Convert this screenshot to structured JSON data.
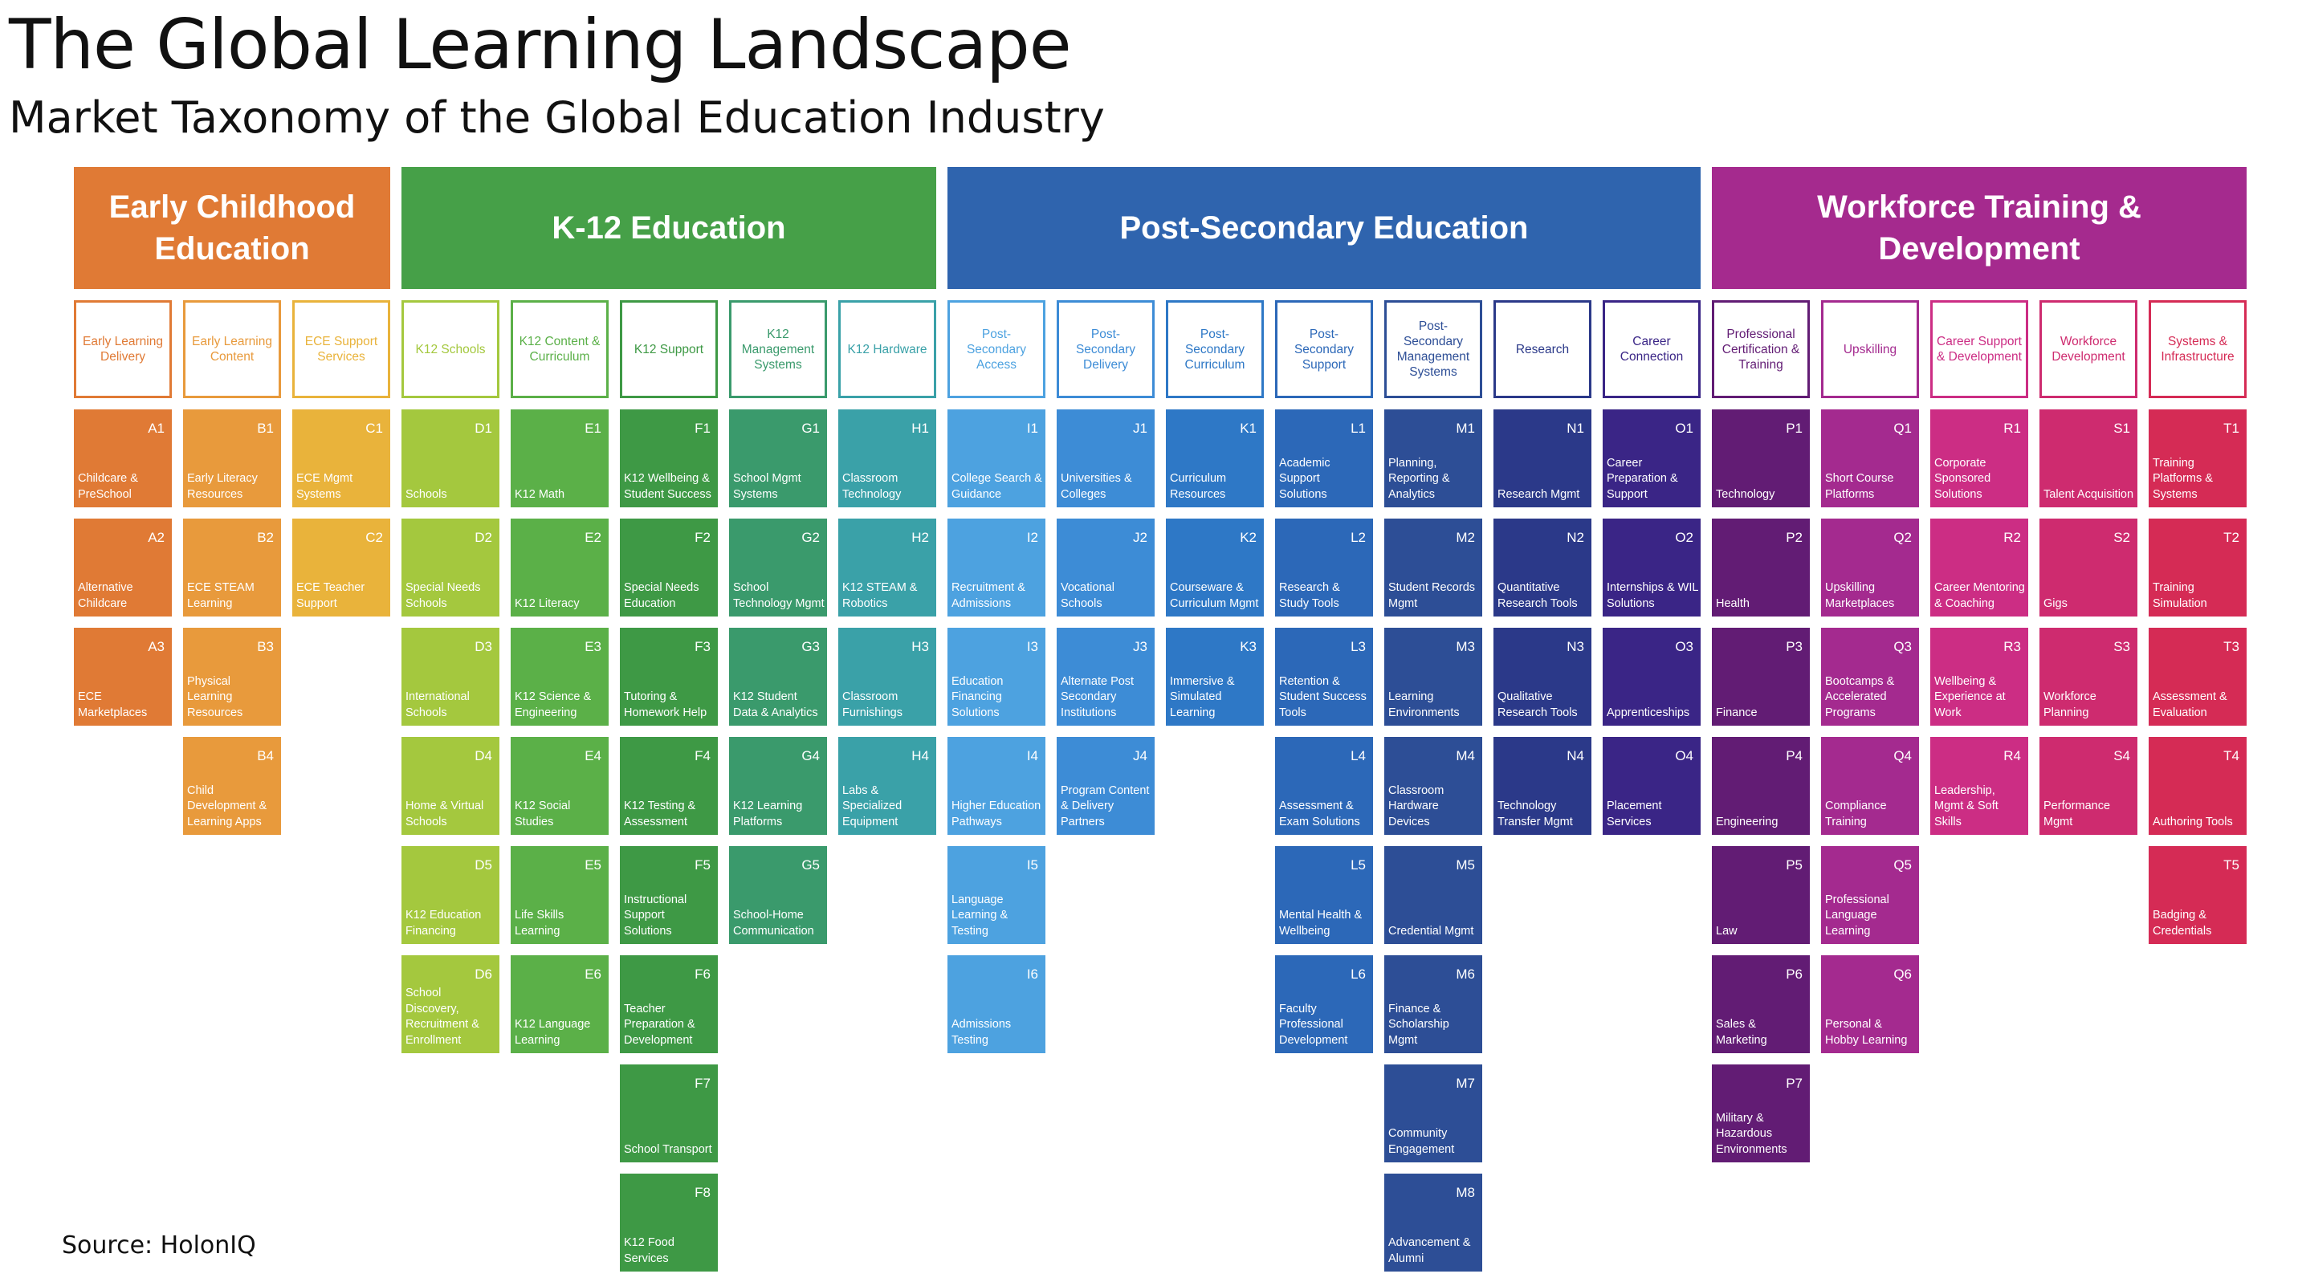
{
  "title": "The Global Learning Landscape",
  "subtitle": "Market Taxonomy of the Global Education Industry",
  "source": "Source: HolonIQ",
  "segments": [
    {
      "name": "Early Childhood Education",
      "color": "#E07A35",
      "subcategories": [
        {
          "label": "Early Learning Delivery",
          "color": "#E07A35",
          "tiles": [
            {
              "code": "A1",
              "label": "Childcare & PreSchool",
              "color": "#E07A35"
            },
            {
              "code": "A2",
              "label": "Alternative Childcare",
              "color": "#E07A35"
            },
            {
              "code": "A3",
              "label": "ECE Marketplaces",
              "color": "#E07A35"
            }
          ]
        },
        {
          "label": "Early Learning Content",
          "color": "#E89A3C",
          "tiles": [
            {
              "code": "B1",
              "label": "Early Literacy Resources",
              "color": "#E89A3C"
            },
            {
              "code": "B2",
              "label": "ECE STEAM Learning",
              "color": "#E89A3C"
            },
            {
              "code": "B3",
              "label": "Physical Learning Resources",
              "color": "#E89A3C"
            },
            {
              "code": "B4",
              "label": "Child Development & Learning Apps",
              "color": "#E89A3C"
            }
          ]
        },
        {
          "label": "ECE Support Services",
          "color": "#E9B33B",
          "tiles": [
            {
              "code": "C1",
              "label": "ECE Mgmt Systems",
              "color": "#E9B33B"
            },
            {
              "code": "C2",
              "label": "ECE Teacher Support",
              "color": "#E9B33B"
            }
          ]
        }
      ]
    },
    {
      "name": "K-12 Education",
      "color": "#46A048",
      "subcategories": [
        {
          "label": "K12 Schools",
          "color": "#A4C83E",
          "tiles": [
            {
              "code": "D1",
              "label": "Schools",
              "color": "#A4C83E"
            },
            {
              "code": "D2",
              "label": "Special Needs Schools",
              "color": "#A4C83E"
            },
            {
              "code": "D3",
              "label": "International Schools",
              "color": "#A4C83E"
            },
            {
              "code": "D4",
              "label": "Home & Virtual Schools",
              "color": "#A4C83E"
            },
            {
              "code": "D5",
              "label": "K12 Education Financing",
              "color": "#A4C83E"
            },
            {
              "code": "D6",
              "label": "School Discovery, Recruitment & Enrollment",
              "color": "#A4C83E"
            }
          ]
        },
        {
          "label": "K12 Content & Curriculum",
          "color": "#5BB048",
          "tiles": [
            {
              "code": "E1",
              "label": "K12 Math",
              "color": "#5BB048"
            },
            {
              "code": "E2",
              "label": "K12 Literacy",
              "color": "#5BB048"
            },
            {
              "code": "E3",
              "label": "K12 Science & Engineering",
              "color": "#5BB048"
            },
            {
              "code": "E4",
              "label": "K12 Social Studies",
              "color": "#5BB048"
            },
            {
              "code": "E5",
              "label": "Life Skills Learning",
              "color": "#5BB048"
            },
            {
              "code": "E6",
              "label": "K12 Language Learning",
              "color": "#5BB048"
            }
          ]
        },
        {
          "label": "K12 Support",
          "color": "#3E9945",
          "tiles": [
            {
              "code": "F1",
              "label": "K12 Wellbeing & Student Success",
              "color": "#3E9945"
            },
            {
              "code": "F2",
              "label": "Special Needs Education",
              "color": "#3E9945"
            },
            {
              "code": "F3",
              "label": "Tutoring & Homework Help",
              "color": "#3E9945"
            },
            {
              "code": "F4",
              "label": "K12 Testing & Assessment",
              "color": "#3E9945"
            },
            {
              "code": "F5",
              "label": "Instructional Support Solutions",
              "color": "#3E9945"
            },
            {
              "code": "F6",
              "label": "Teacher Preparation & Development",
              "color": "#3E9945"
            },
            {
              "code": "F7",
              "label": "School Transport",
              "color": "#3E9945"
            },
            {
              "code": "F8",
              "label": "K12 Food Services",
              "color": "#3E9945"
            }
          ]
        },
        {
          "label": "K12 Management Systems",
          "color": "#3A9A6C",
          "tiles": [
            {
              "code": "G1",
              "label": "School Mgmt Systems",
              "color": "#3A9A6C"
            },
            {
              "code": "G2",
              "label": "School Technology Mgmt",
              "color": "#3A9A6C"
            },
            {
              "code": "G3",
              "label": "K12 Student Data & Analytics",
              "color": "#3A9A6C"
            },
            {
              "code": "G4",
              "label": "K12 Learning Platforms",
              "color": "#3A9A6C"
            },
            {
              "code": "G5",
              "label": "School-Home Communication",
              "color": "#3A9A6C"
            }
          ]
        },
        {
          "label": "K12 Hardware",
          "color": "#3AA1A8",
          "tiles": [
            {
              "code": "H1",
              "label": "Classroom Technology",
              "color": "#3AA1A8"
            },
            {
              "code": "H2",
              "label": "K12 STEAM & Robotics",
              "color": "#3AA1A8"
            },
            {
              "code": "H3",
              "label": "Classroom Furnishings",
              "color": "#3AA1A8"
            },
            {
              "code": "H4",
              "label": "Labs & Specialized Equipment",
              "color": "#3AA1A8"
            }
          ]
        }
      ]
    },
    {
      "name": "Post-Secondary Education",
      "color": "#2F64AE",
      "subcategories": [
        {
          "label": "Post-Secondary Access",
          "color": "#4DA2E0",
          "tiles": [
            {
              "code": "I1",
              "label": "College Search & Guidance",
              "color": "#4DA2E0"
            },
            {
              "code": "I2",
              "label": "Recruitment & Admissions",
              "color": "#4DA2E0"
            },
            {
              "code": "I3",
              "label": "Education Financing Solutions",
              "color": "#4DA2E0"
            },
            {
              "code": "I4",
              "label": "Higher Education Pathways",
              "color": "#4DA2E0"
            },
            {
              "code": "I5",
              "label": "Language Learning & Testing",
              "color": "#4DA2E0"
            },
            {
              "code": "I6",
              "label": "Admissions Testing",
              "color": "#4DA2E0"
            }
          ]
        },
        {
          "label": "Post-Secondary Delivery",
          "color": "#3D8CD6",
          "tiles": [
            {
              "code": "J1",
              "label": "Universities & Colleges",
              "color": "#3D8CD6"
            },
            {
              "code": "J2",
              "label": "Vocational Schools",
              "color": "#3D8CD6"
            },
            {
              "code": "J3",
              "label": "Alternate Post Secondary Institutions",
              "color": "#3D8CD6"
            },
            {
              "code": "J4",
              "label": "Program Content & Delivery Partners",
              "color": "#3D8CD6"
            }
          ]
        },
        {
          "label": "Post-Secondary Curriculum",
          "color": "#2E78C6",
          "tiles": [
            {
              "code": "K1",
              "label": "Curriculum Resources",
              "color": "#2E78C6"
            },
            {
              "code": "K2",
              "label": "Courseware & Curriculum Mgmt",
              "color": "#2E78C6"
            },
            {
              "code": "K3",
              "label": "Immersive & Simulated Learning",
              "color": "#2E78C6"
            }
          ]
        },
        {
          "label": "Post-Secondary Support",
          "color": "#2C68B8",
          "tiles": [
            {
              "code": "L1",
              "label": "Academic Support Solutions",
              "color": "#2C68B8"
            },
            {
              "code": "L2",
              "label": "Research & Study Tools",
              "color": "#2C68B8"
            },
            {
              "code": "L3",
              "label": "Retention & Student Success Tools",
              "color": "#2C68B8"
            },
            {
              "code": "L4",
              "label": "Assessment & Exam Solutions",
              "color": "#2C68B8"
            },
            {
              "code": "L5",
              "label": "Mental Health & Wellbeing",
              "color": "#2C68B8"
            },
            {
              "code": "L6",
              "label": "Faculty Professional Development",
              "color": "#2C68B8"
            }
          ]
        },
        {
          "label": "Post-Secondary Management Systems",
          "color": "#2D4E96",
          "tiles": [
            {
              "code": "M1",
              "label": "Planning, Reporting & Analytics",
              "color": "#2D4E96"
            },
            {
              "code": "M2",
              "label": "Student Records Mgmt",
              "color": "#2D4E96"
            },
            {
              "code": "M3",
              "label": "Learning Environments",
              "color": "#2D4E96"
            },
            {
              "code": "M4",
              "label": "Classroom Hardware Devices",
              "color": "#2D4E96"
            },
            {
              "code": "M5",
              "label": "Credential Mgmt",
              "color": "#2D4E96"
            },
            {
              "code": "M6",
              "label": "Finance & Scholarship Mgmt",
              "color": "#2D4E96"
            },
            {
              "code": "M7",
              "label": "Community Engagement",
              "color": "#2D4E96"
            },
            {
              "code": "M8",
              "label": "Advancement & Alumni",
              "color": "#2D4E96"
            }
          ]
        },
        {
          "label": "Research",
          "color": "#2B3989",
          "tiles": [
            {
              "code": "N1",
              "label": "Research Mgmt",
              "color": "#2B3989"
            },
            {
              "code": "N2",
              "label": "Quantitative Research Tools",
              "color": "#2B3989"
            },
            {
              "code": "N3",
              "label": "Qualitative Research Tools",
              "color": "#2B3989"
            },
            {
              "code": "N4",
              "label": "Technology Transfer Mgmt",
              "color": "#2B3989"
            }
          ]
        },
        {
          "label": "Career Connection",
          "color": "#3A2586",
          "tiles": [
            {
              "code": "O1",
              "label": "Career Preparation & Support",
              "color": "#3A2586"
            },
            {
              "code": "O2",
              "label": "Internships & WIL Solutions",
              "color": "#3A2586"
            },
            {
              "code": "O3",
              "label": "Apprenticeships",
              "color": "#3A2586"
            },
            {
              "code": "O4",
              "label": "Placement Services",
              "color": "#3A2586"
            }
          ]
        }
      ]
    },
    {
      "name": "Workforce Training & Development",
      "color": "#A52A8E",
      "subcategories": [
        {
          "label": "Professional Certification & Training",
          "color": "#621C74",
          "tiles": [
            {
              "code": "P1",
              "label": "Technology",
              "color": "#621C74"
            },
            {
              "code": "P2",
              "label": "Health",
              "color": "#621C74"
            },
            {
              "code": "P3",
              "label": "Finance",
              "color": "#621C74"
            },
            {
              "code": "P4",
              "label": "Engineering",
              "color": "#621C74"
            },
            {
              "code": "P5",
              "label": "Law",
              "color": "#621C74"
            },
            {
              "code": "P6",
              "label": "Sales & Marketing",
              "color": "#621C74"
            },
            {
              "code": "P7",
              "label": "Military & Hazardous Environments",
              "color": "#621C74"
            }
          ]
        },
        {
          "label": "Upskilling",
          "color": "#A42A8F",
          "tiles": [
            {
              "code": "Q1",
              "label": "Short Course Platforms",
              "color": "#A42A8F"
            },
            {
              "code": "Q2",
              "label": "Upskilling Marketplaces",
              "color": "#A42A8F"
            },
            {
              "code": "Q3",
              "label": "Bootcamps & Accelerated Programs",
              "color": "#A42A8F"
            },
            {
              "code": "Q4",
              "label": "Compliance Training",
              "color": "#A42A8F"
            },
            {
              "code": "Q5",
              "label": "Professional Language Learning",
              "color": "#A42A8F"
            },
            {
              "code": "Q6",
              "label": "Personal & Hobby Learning",
              "color": "#A42A8F"
            }
          ]
        },
        {
          "label": "Career Support & Development",
          "color": "#CC2D84",
          "tiles": [
            {
              "code": "R1",
              "label": "Corporate Sponsored Solutions",
              "color": "#CC2D84"
            },
            {
              "code": "R2",
              "label": "Career Mentoring & Coaching",
              "color": "#CC2D84"
            },
            {
              "code": "R3",
              "label": "Wellbeing & Experience at Work",
              "color": "#CC2D84"
            },
            {
              "code": "R4",
              "label": "Leadership, Mgmt & Soft Skills",
              "color": "#CC2D84"
            }
          ]
        },
        {
          "label": "Workforce Development",
          "color": "#CE2B6F",
          "tiles": [
            {
              "code": "S1",
              "label": "Talent Acquisition",
              "color": "#CE2B6F"
            },
            {
              "code": "S2",
              "label": "Gigs",
              "color": "#CE2B6F"
            },
            {
              "code": "S3",
              "label": "Workforce Planning",
              "color": "#CE2B6F"
            },
            {
              "code": "S4",
              "label": "Performance Mgmt",
              "color": "#CE2B6F"
            }
          ]
        },
        {
          "label": "Systems & Infrastructure",
          "color": "#D52B55",
          "tiles": [
            {
              "code": "T1",
              "label": "Training Platforms & Systems",
              "color": "#D52B55"
            },
            {
              "code": "T2",
              "label": "Training Simulation",
              "color": "#D52B55"
            },
            {
              "code": "T3",
              "label": "Assessment & Evaluation",
              "color": "#D52B55"
            },
            {
              "code": "T4",
              "label": "Authoring Tools",
              "color": "#D52B55"
            },
            {
              "code": "T5",
              "label": "Badging & Credentials",
              "color": "#D52B55"
            }
          ]
        }
      ]
    }
  ]
}
